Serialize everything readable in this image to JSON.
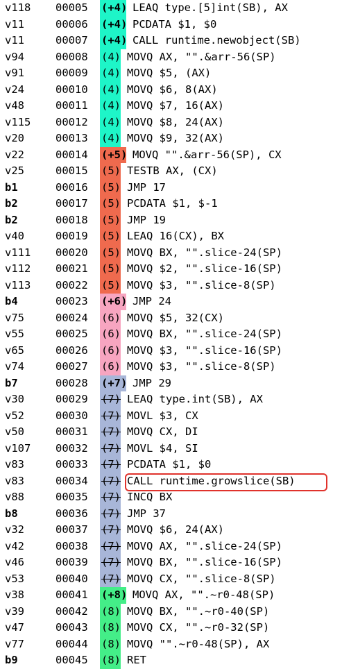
{
  "colors": {
    "4": "#1ef5c8",
    "5": "#ef6a4e",
    "6": "#f7a5c0",
    "7": "#a8b6d8",
    "8": "#44ee88",
    "highlight_border": "#e0322c"
  },
  "rows": [
    {
      "v": "v118",
      "addr": "00005",
      "line": "(+4)",
      "instr": "LEAQ type.[5]int(SB), AX",
      "group": "4",
      "first": true,
      "block": false,
      "strike": false,
      "highlight": false
    },
    {
      "v": "v11",
      "addr": "00006",
      "line": "(+4)",
      "instr": "PCDATA $1, $0",
      "group": "4",
      "first": true,
      "block": false,
      "strike": false,
      "highlight": false
    },
    {
      "v": "v11",
      "addr": "00007",
      "line": "(+4)",
      "instr": "CALL runtime.newobject(SB)",
      "group": "4",
      "first": true,
      "block": false,
      "strike": false,
      "highlight": false
    },
    {
      "v": "v94",
      "addr": "00008",
      "line": "(4)",
      "instr": "MOVQ AX, \"\".&arr-56(SP)",
      "group": "4",
      "first": false,
      "block": false,
      "strike": false,
      "highlight": false
    },
    {
      "v": "v91",
      "addr": "00009",
      "line": "(4)",
      "instr": "MOVQ $5, (AX)",
      "group": "4",
      "first": false,
      "block": false,
      "strike": false,
      "highlight": false
    },
    {
      "v": "v24",
      "addr": "00010",
      "line": "(4)",
      "instr": "MOVQ $6, 8(AX)",
      "group": "4",
      "first": false,
      "block": false,
      "strike": false,
      "highlight": false
    },
    {
      "v": "v48",
      "addr": "00011",
      "line": "(4)",
      "instr": "MOVQ $7, 16(AX)",
      "group": "4",
      "first": false,
      "block": false,
      "strike": false,
      "highlight": false
    },
    {
      "v": "v115",
      "addr": "00012",
      "line": "(4)",
      "instr": "MOVQ $8, 24(AX)",
      "group": "4",
      "first": false,
      "block": false,
      "strike": false,
      "highlight": false
    },
    {
      "v": "v20",
      "addr": "00013",
      "line": "(4)",
      "instr": "MOVQ $9, 32(AX)",
      "group": "4",
      "first": false,
      "block": false,
      "strike": false,
      "highlight": false
    },
    {
      "v": "v22",
      "addr": "00014",
      "line": "(+5)",
      "instr": "MOVQ \"\".&arr-56(SP), CX",
      "group": "5",
      "first": true,
      "block": false,
      "strike": false,
      "highlight": false
    },
    {
      "v": "v25",
      "addr": "00015",
      "line": "(5)",
      "instr": "TESTB AX, (CX)",
      "group": "5",
      "first": false,
      "block": false,
      "strike": false,
      "highlight": false
    },
    {
      "v": "b1",
      "addr": "00016",
      "line": "(5)",
      "instr": "JMP 17",
      "group": "5",
      "first": false,
      "block": true,
      "strike": false,
      "highlight": false
    },
    {
      "v": "b2",
      "addr": "00017",
      "line": "(5)",
      "instr": "PCDATA $1, $-1",
      "group": "5",
      "first": false,
      "block": true,
      "strike": false,
      "highlight": false
    },
    {
      "v": "b2",
      "addr": "00018",
      "line": "(5)",
      "instr": "JMP 19",
      "group": "5",
      "first": false,
      "block": true,
      "strike": false,
      "highlight": false
    },
    {
      "v": "v40",
      "addr": "00019",
      "line": "(5)",
      "instr": "LEAQ 16(CX), BX",
      "group": "5",
      "first": false,
      "block": false,
      "strike": false,
      "highlight": false
    },
    {
      "v": "v111",
      "addr": "00020",
      "line": "(5)",
      "instr": "MOVQ BX, \"\".slice-24(SP)",
      "group": "5",
      "first": false,
      "block": false,
      "strike": false,
      "highlight": false
    },
    {
      "v": "v112",
      "addr": "00021",
      "line": "(5)",
      "instr": "MOVQ $2, \"\".slice-16(SP)",
      "group": "5",
      "first": false,
      "block": false,
      "strike": false,
      "highlight": false
    },
    {
      "v": "v113",
      "addr": "00022",
      "line": "(5)",
      "instr": "MOVQ $3, \"\".slice-8(SP)",
      "group": "5",
      "first": false,
      "block": false,
      "strike": false,
      "highlight": false
    },
    {
      "v": "b4",
      "addr": "00023",
      "line": "(+6)",
      "instr": "JMP 24",
      "group": "6",
      "first": true,
      "block": true,
      "strike": false,
      "highlight": false
    },
    {
      "v": "v75",
      "addr": "00024",
      "line": "(6)",
      "instr": "MOVQ $5, 32(CX)",
      "group": "6",
      "first": false,
      "block": false,
      "strike": false,
      "highlight": false
    },
    {
      "v": "v55",
      "addr": "00025",
      "line": "(6)",
      "instr": "MOVQ BX, \"\".slice-24(SP)",
      "group": "6",
      "first": false,
      "block": false,
      "strike": false,
      "highlight": false
    },
    {
      "v": "v65",
      "addr": "00026",
      "line": "(6)",
      "instr": "MOVQ $3, \"\".slice-16(SP)",
      "group": "6",
      "first": false,
      "block": false,
      "strike": false,
      "highlight": false
    },
    {
      "v": "v74",
      "addr": "00027",
      "line": "(6)",
      "instr": "MOVQ $3, \"\".slice-8(SP)",
      "group": "6",
      "first": false,
      "block": false,
      "strike": false,
      "highlight": false
    },
    {
      "v": "b7",
      "addr": "00028",
      "line": "(+7)",
      "instr": "JMP 29",
      "group": "7",
      "first": true,
      "block": true,
      "strike": false,
      "highlight": false
    },
    {
      "v": "v30",
      "addr": "00029",
      "line": "(7)",
      "instr": "LEAQ type.int(SB), AX",
      "group": "7",
      "first": false,
      "block": false,
      "strike": true,
      "highlight": false
    },
    {
      "v": "v52",
      "addr": "00030",
      "line": "(7)",
      "instr": "MOVL $3, CX",
      "group": "7",
      "first": false,
      "block": false,
      "strike": true,
      "highlight": false
    },
    {
      "v": "v50",
      "addr": "00031",
      "line": "(7)",
      "instr": "MOVQ CX, DI",
      "group": "7",
      "first": false,
      "block": false,
      "strike": true,
      "highlight": false
    },
    {
      "v": "v107",
      "addr": "00032",
      "line": "(7)",
      "instr": "MOVL $4, SI",
      "group": "7",
      "first": false,
      "block": false,
      "strike": true,
      "highlight": false
    },
    {
      "v": "v83",
      "addr": "00033",
      "line": "(7)",
      "instr": "PCDATA $1, $0",
      "group": "7",
      "first": false,
      "block": false,
      "strike": true,
      "highlight": false
    },
    {
      "v": "v83",
      "addr": "00034",
      "line": "(7)",
      "instr": "CALL runtime.growslice(SB)",
      "group": "7",
      "first": false,
      "block": false,
      "strike": true,
      "highlight": true
    },
    {
      "v": "v88",
      "addr": "00035",
      "line": "(7)",
      "instr": "INCQ BX",
      "group": "7",
      "first": false,
      "block": false,
      "strike": true,
      "highlight": false
    },
    {
      "v": "b8",
      "addr": "00036",
      "line": "(7)",
      "instr": "JMP 37",
      "group": "7",
      "first": false,
      "block": true,
      "strike": true,
      "highlight": false
    },
    {
      "v": "v32",
      "addr": "00037",
      "line": "(7)",
      "instr": "MOVQ $6, 24(AX)",
      "group": "7",
      "first": false,
      "block": false,
      "strike": true,
      "highlight": false
    },
    {
      "v": "v42",
      "addr": "00038",
      "line": "(7)",
      "instr": "MOVQ AX, \"\".slice-24(SP)",
      "group": "7",
      "first": false,
      "block": false,
      "strike": true,
      "highlight": false
    },
    {
      "v": "v46",
      "addr": "00039",
      "line": "(7)",
      "instr": "MOVQ BX, \"\".slice-16(SP)",
      "group": "7",
      "first": false,
      "block": false,
      "strike": true,
      "highlight": false
    },
    {
      "v": "v53",
      "addr": "00040",
      "line": "(7)",
      "instr": "MOVQ CX, \"\".slice-8(SP)",
      "group": "7",
      "first": false,
      "block": false,
      "strike": true,
      "highlight": false
    },
    {
      "v": "v38",
      "addr": "00041",
      "line": "(+8)",
      "instr": "MOVQ AX, \"\".~r0-48(SP)",
      "group": "8",
      "first": true,
      "block": false,
      "strike": false,
      "highlight": false
    },
    {
      "v": "v39",
      "addr": "00042",
      "line": "(8)",
      "instr": "MOVQ BX, \"\".~r0-40(SP)",
      "group": "8",
      "first": false,
      "block": false,
      "strike": false,
      "highlight": false
    },
    {
      "v": "v47",
      "addr": "00043",
      "line": "(8)",
      "instr": "MOVQ CX, \"\".~r0-32(SP)",
      "group": "8",
      "first": false,
      "block": false,
      "strike": false,
      "highlight": false
    },
    {
      "v": "v77",
      "addr": "00044",
      "line": "(8)",
      "instr": "MOVQ \"\".~r0-48(SP), AX",
      "group": "8",
      "first": false,
      "block": false,
      "strike": false,
      "highlight": false
    },
    {
      "v": "b9",
      "addr": "00045",
      "line": "(8)",
      "instr": "RET",
      "group": "8",
      "first": false,
      "block": true,
      "strike": false,
      "highlight": false
    }
  ]
}
